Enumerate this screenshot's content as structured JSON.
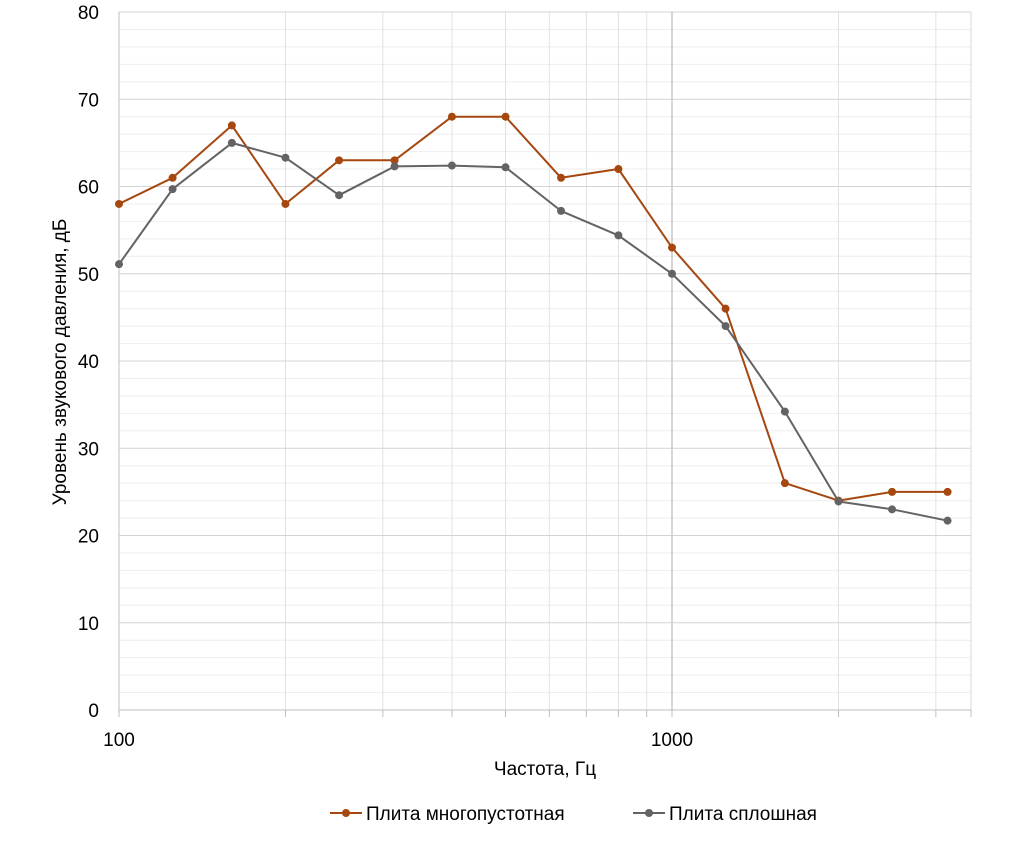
{
  "chart_data": {
    "type": "line",
    "title": "",
    "xlabel": "Частота, Гц",
    "ylabel": "Уровень звукового давления, дБ",
    "x_scale": "log",
    "xlim": [
      100,
      3150
    ],
    "ylim": [
      0,
      80
    ],
    "x_tick_labels": [
      "100",
      "1000"
    ],
    "y_ticks": [
      0,
      10,
      20,
      30,
      40,
      50,
      60,
      70,
      80
    ],
    "y_tick_labels": [
      "0",
      "10",
      "20",
      "30",
      "40",
      "50",
      "60",
      "70",
      "80"
    ],
    "grid": true,
    "legend_position": "bottom",
    "x": [
      100,
      125,
      160,
      200,
      250,
      315,
      400,
      500,
      630,
      800,
      1000,
      1250,
      1600,
      2000,
      2500,
      3150
    ],
    "series": [
      {
        "name": "Плита многопустотная",
        "color": "#A5470F",
        "values": [
          58,
          61,
          67,
          58,
          63,
          63,
          68,
          68,
          61,
          62,
          53,
          46,
          26,
          24,
          25,
          25
        ]
      },
      {
        "name": "Плита сплошная",
        "color": "#636363",
        "values": [
          51.1,
          59.7,
          65,
          63.3,
          59,
          62.3,
          62.4,
          62.2,
          57.2,
          54.4,
          50,
          44,
          34.2,
          23.9,
          23,
          21.7
        ]
      }
    ]
  }
}
